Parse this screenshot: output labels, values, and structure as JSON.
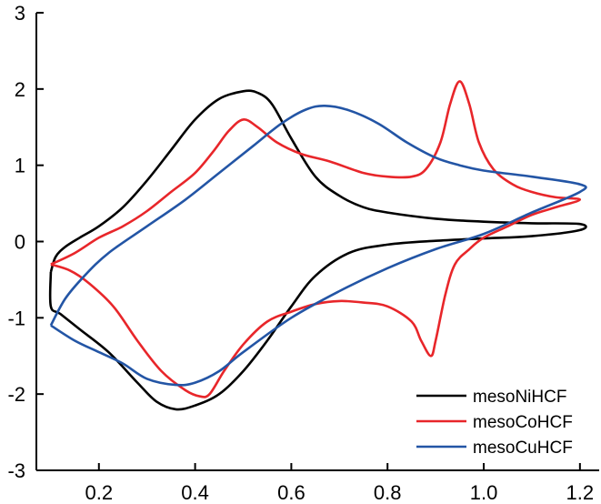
{
  "chart_data": {
    "type": "line",
    "title": "",
    "xlabel": "",
    "ylabel": "",
    "xlim": [
      0.07,
      1.24
    ],
    "ylim": [
      -3,
      3
    ],
    "xticks": [
      0.2,
      0.4,
      0.6,
      0.8,
      1.0,
      1.2
    ],
    "xtick_labels": [
      "0.2",
      "0.4",
      "0.6",
      "0.8",
      "1.0",
      "1.2"
    ],
    "yticks": [
      -3,
      -2,
      -1,
      0,
      1,
      2,
      3
    ],
    "ytick_labels": [
      "-3",
      "-2",
      "-1",
      "0",
      "1",
      "2",
      "3"
    ],
    "grid": false,
    "legend_position": "bottom-right",
    "series": [
      {
        "name": "mesoNiHCF",
        "color": "#000000",
        "points": [
          [
            0.1,
            -0.4
          ],
          [
            0.11,
            -0.2
          ],
          [
            0.13,
            -0.07
          ],
          [
            0.16,
            0.05
          ],
          [
            0.2,
            0.2
          ],
          [
            0.25,
            0.45
          ],
          [
            0.3,
            0.8
          ],
          [
            0.35,
            1.2
          ],
          [
            0.4,
            1.6
          ],
          [
            0.45,
            1.87
          ],
          [
            0.5,
            1.97
          ],
          [
            0.53,
            1.95
          ],
          [
            0.56,
            1.8
          ],
          [
            0.6,
            1.35
          ],
          [
            0.65,
            0.85
          ],
          [
            0.7,
            0.6
          ],
          [
            0.75,
            0.45
          ],
          [
            0.8,
            0.38
          ],
          [
            0.9,
            0.3
          ],
          [
            1.0,
            0.26
          ],
          [
            1.1,
            0.24
          ],
          [
            1.2,
            0.23
          ],
          [
            1.2,
            0.15
          ],
          [
            1.1,
            0.07
          ],
          [
            1.0,
            0.04
          ],
          [
            0.9,
            0.01
          ],
          [
            0.8,
            -0.04
          ],
          [
            0.72,
            -0.15
          ],
          [
            0.65,
            -0.45
          ],
          [
            0.6,
            -0.85
          ],
          [
            0.55,
            -1.3
          ],
          [
            0.5,
            -1.7
          ],
          [
            0.45,
            -2.0
          ],
          [
            0.4,
            -2.15
          ],
          [
            0.36,
            -2.2
          ],
          [
            0.32,
            -2.1
          ],
          [
            0.28,
            -1.85
          ],
          [
            0.22,
            -1.45
          ],
          [
            0.16,
            -1.15
          ],
          [
            0.12,
            -0.95
          ],
          [
            0.1,
            -0.85
          ],
          [
            0.1,
            -0.4
          ]
        ]
      },
      {
        "name": "mesoCoHCF",
        "color": "#e8262a",
        "points": [
          [
            0.1,
            -0.3
          ],
          [
            0.15,
            -0.15
          ],
          [
            0.2,
            0.05
          ],
          [
            0.25,
            0.2
          ],
          [
            0.3,
            0.4
          ],
          [
            0.35,
            0.65
          ],
          [
            0.4,
            0.9
          ],
          [
            0.44,
            1.2
          ],
          [
            0.47,
            1.45
          ],
          [
            0.5,
            1.6
          ],
          [
            0.53,
            1.5
          ],
          [
            0.57,
            1.3
          ],
          [
            0.62,
            1.15
          ],
          [
            0.68,
            1.05
          ],
          [
            0.75,
            0.9
          ],
          [
            0.8,
            0.85
          ],
          [
            0.85,
            0.85
          ],
          [
            0.88,
            0.95
          ],
          [
            0.91,
            1.3
          ],
          [
            0.93,
            1.8
          ],
          [
            0.95,
            2.1
          ],
          [
            0.97,
            1.8
          ],
          [
            0.99,
            1.3
          ],
          [
            1.02,
            0.95
          ],
          [
            1.06,
            0.75
          ],
          [
            1.1,
            0.65
          ],
          [
            1.15,
            0.58
          ],
          [
            1.2,
            0.55
          ],
          [
            1.15,
            0.45
          ],
          [
            1.1,
            0.35
          ],
          [
            1.05,
            0.2
          ],
          [
            1.0,
            0.05
          ],
          [
            0.97,
            -0.1
          ],
          [
            0.94,
            -0.3
          ],
          [
            0.92,
            -0.7
          ],
          [
            0.9,
            -1.3
          ],
          [
            0.89,
            -1.5
          ],
          [
            0.87,
            -1.3
          ],
          [
            0.85,
            -1.05
          ],
          [
            0.8,
            -0.85
          ],
          [
            0.75,
            -0.8
          ],
          [
            0.7,
            -0.78
          ],
          [
            0.65,
            -0.82
          ],
          [
            0.6,
            -0.92
          ],
          [
            0.55,
            -1.05
          ],
          [
            0.5,
            -1.35
          ],
          [
            0.46,
            -1.7
          ],
          [
            0.43,
            -2.0
          ],
          [
            0.41,
            -2.03
          ],
          [
            0.38,
            -1.95
          ],
          [
            0.33,
            -1.7
          ],
          [
            0.28,
            -1.3
          ],
          [
            0.23,
            -0.85
          ],
          [
            0.18,
            -0.55
          ],
          [
            0.14,
            -0.38
          ],
          [
            0.1,
            -0.3
          ]
        ]
      },
      {
        "name": "mesoCuHCF",
        "color": "#2355a5",
        "points": [
          [
            0.1,
            -1.1
          ],
          [
            0.13,
            -0.75
          ],
          [
            0.17,
            -0.45
          ],
          [
            0.22,
            -0.15
          ],
          [
            0.3,
            0.2
          ],
          [
            0.38,
            0.55
          ],
          [
            0.45,
            0.9
          ],
          [
            0.52,
            1.25
          ],
          [
            0.58,
            1.55
          ],
          [
            0.63,
            1.73
          ],
          [
            0.67,
            1.78
          ],
          [
            0.72,
            1.72
          ],
          [
            0.78,
            1.55
          ],
          [
            0.84,
            1.3
          ],
          [
            0.9,
            1.1
          ],
          [
            0.95,
            1.0
          ],
          [
            1.0,
            0.93
          ],
          [
            1.1,
            0.85
          ],
          [
            1.2,
            0.75
          ],
          [
            1.2,
            0.65
          ],
          [
            1.1,
            0.38
          ],
          [
            1.0,
            0.1
          ],
          [
            0.9,
            -0.1
          ],
          [
            0.8,
            -0.35
          ],
          [
            0.7,
            -0.65
          ],
          [
            0.6,
            -1.0
          ],
          [
            0.5,
            -1.45
          ],
          [
            0.45,
            -1.7
          ],
          [
            0.4,
            -1.85
          ],
          [
            0.36,
            -1.88
          ],
          [
            0.3,
            -1.8
          ],
          [
            0.25,
            -1.6
          ],
          [
            0.2,
            -1.45
          ],
          [
            0.15,
            -1.3
          ],
          [
            0.1,
            -1.1
          ]
        ]
      }
    ]
  }
}
